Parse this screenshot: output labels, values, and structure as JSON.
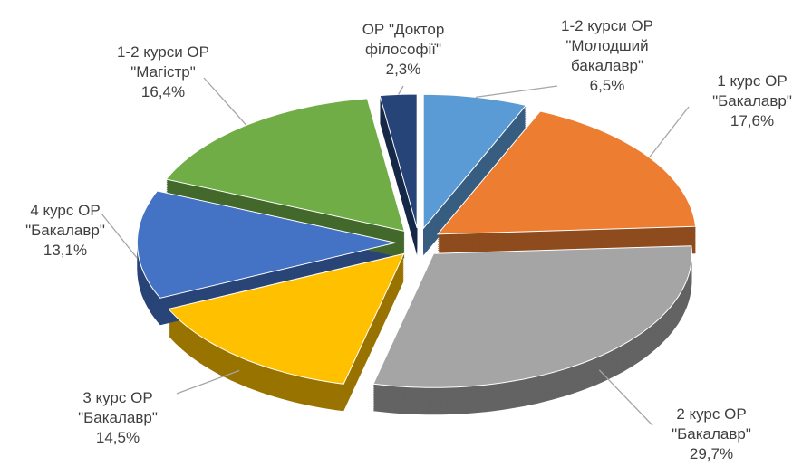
{
  "chart_data": {
    "type": "pie",
    "categories": [
      "1-2 курси ОР\n\"Молодший\nбакалавр\"",
      "1 курс ОР\n\"Бакалавр\"",
      "2  курс ОР\n\"Бакалавр\"",
      "3  курс ОР\n\"Бакалавр\"",
      "4  курс ОР\n\"Бакалавр\"",
      "1-2 курси ОР\n\"Магістр\"",
      "ОР \"Доктор\nфілософії\""
    ],
    "values": [
      6.5,
      17.6,
      29.7,
      14.5,
      13.1,
      16.4,
      2.3
    ],
    "value_labels": [
      "6,5%",
      "17,6%",
      "29,7%",
      "14,5%",
      "13,1%",
      "16,4%",
      "2,3%"
    ],
    "colors": [
      "#5b9bd5",
      "#ed7d31",
      "#a5a5a5",
      "#ffc000",
      "#4472c4",
      "#70ad47",
      "#264478"
    ]
  }
}
